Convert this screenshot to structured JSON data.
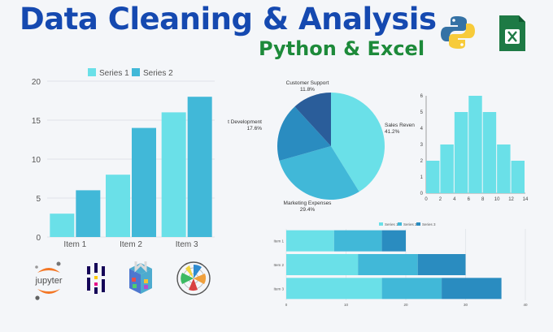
{
  "header": {
    "title": "Data Cleaning & Analysis",
    "subtitle": "Python & Excel"
  },
  "colors": {
    "c1": "#6ae0e8",
    "c2": "#41b8d8",
    "c3": "#2a8cc0",
    "c4": "#2a5d9a"
  },
  "icons": [
    "python-logo-icon",
    "excel-logo-icon",
    "jupyter-logo-icon",
    "pandas-logo-icon",
    "numpy-logo-icon",
    "matplotlib-logo-icon"
  ],
  "jupyter": {
    "label": "jupyter"
  },
  "chart_data": [
    {
      "type": "bar",
      "legend": [
        "Series 1",
        "Series 2"
      ],
      "categories": [
        "Item 1",
        "Item 2",
        "Item 3"
      ],
      "series": [
        {
          "name": "Series 1",
          "values": [
            3,
            8,
            16
          ]
        },
        {
          "name": "Series 2",
          "values": [
            6,
            14,
            18
          ]
        }
      ],
      "yticks": [
        "0",
        "5",
        "10",
        "15",
        "20"
      ],
      "ylim": [
        0,
        20
      ]
    },
    {
      "type": "pie",
      "slices": [
        {
          "label": "Sales Revenue",
          "pct": "41.2%",
          "value": 41.2
        },
        {
          "label": "Marketing Expenses",
          "pct": "29.4%",
          "value": 29.4
        },
        {
          "label": "Product Development",
          "pct": "17.6%",
          "value": 17.6
        },
        {
          "label": "Customer Support",
          "pct": "11.8%",
          "value": 11.8
        }
      ]
    },
    {
      "type": "bar",
      "subtype": "histogram",
      "bins": [
        0,
        2,
        4,
        6,
        8,
        10,
        12,
        14
      ],
      "counts": [
        2,
        3,
        5,
        6,
        5,
        3,
        2
      ],
      "xticks": [
        "0",
        "2",
        "4",
        "6",
        "8",
        "10",
        "12",
        "14"
      ],
      "yticks": [
        "0",
        "1",
        "2",
        "3",
        "4",
        "5",
        "6"
      ],
      "ylim": [
        0,
        6
      ]
    },
    {
      "type": "bar",
      "subtype": "stacked-horizontal",
      "legend": [
        "Series 1",
        "Series 2",
        "Series 3"
      ],
      "categories": [
        "Item 1",
        "Item 2",
        "Item 3"
      ],
      "series": [
        {
          "name": "Series 1",
          "values": [
            8,
            12,
            16
          ]
        },
        {
          "name": "Series 2",
          "values": [
            8,
            10,
            10
          ]
        },
        {
          "name": "Series 3",
          "values": [
            4,
            8,
            10
          ]
        }
      ],
      "xticks": [
        "0",
        "10",
        "20",
        "30",
        "40"
      ],
      "xlim": [
        0,
        40
      ]
    }
  ]
}
